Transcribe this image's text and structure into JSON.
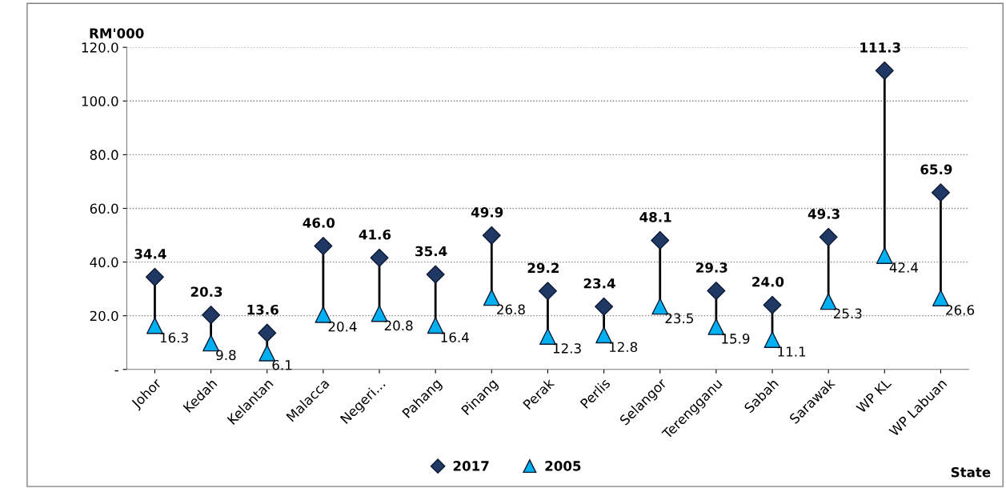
{
  "chart_data": {
    "type": "scatter",
    "ylabel": "RM'000",
    "xlabel": "State",
    "categories": [
      "Johor",
      "Kedah",
      "Kelantan",
      "Malacca",
      "Negeri…",
      "Pahang",
      "Pinang",
      "Perak",
      "Perlis",
      "Selangor",
      "Terengganu",
      "Sabah",
      "Sarawak",
      "WP KL",
      "WP Labuan"
    ],
    "series": [
      {
        "name": "2017",
        "color": "#1f3864",
        "marker": "diamond",
        "values": [
          34.4,
          20.3,
          13.6,
          46.0,
          41.6,
          35.4,
          49.9,
          29.2,
          23.4,
          48.1,
          29.3,
          24.0,
          49.3,
          111.3,
          65.9
        ],
        "value_labels": [
          "34.4",
          "20.3",
          "13.6",
          "46.0",
          "41.6",
          "35.4",
          "49.9",
          "29.2",
          "23.4",
          "48.1",
          "29.3",
          "24.0",
          "49.3",
          "111.3",
          "65.9"
        ]
      },
      {
        "name": "2005",
        "color": "#00b0f0",
        "marker": "triangle",
        "values": [
          16.3,
          9.8,
          6.1,
          20.4,
          20.8,
          16.4,
          26.8,
          12.3,
          12.8,
          23.5,
          15.9,
          11.1,
          25.3,
          42.4,
          26.6
        ],
        "value_labels": [
          "16.3",
          "9.8",
          "6.1",
          "20.4",
          "20.8",
          "16.4",
          "26.8",
          "12.3",
          "12.8",
          "23.5",
          "15.9",
          "11.1",
          "25.3",
          "42.4",
          "26.6"
        ]
      }
    ],
    "ylim": [
      0,
      120
    ],
    "yticks": [
      {
        "value": 0,
        "label": "-"
      },
      {
        "value": 20,
        "label": "20.0"
      },
      {
        "value": 40,
        "label": "40.0"
      },
      {
        "value": 60,
        "label": "60.0"
      },
      {
        "value": 80,
        "label": "80.0"
      },
      {
        "value": 100,
        "label": "100.0"
      },
      {
        "value": 120,
        "label": "120.0"
      }
    ],
    "grid": "y",
    "legend": "bottom"
  }
}
